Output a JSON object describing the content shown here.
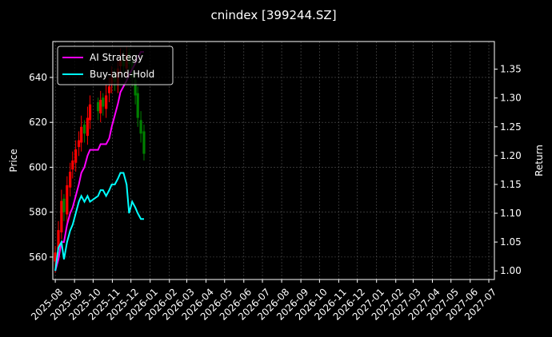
{
  "chart_data": {
    "type": "candlestick",
    "title": "cnindex [399244.SZ]",
    "ylabel": "Price",
    "y2label": "Return",
    "x": [
      "2025-08-01",
      "2025-08-06",
      "2025-08-11",
      "2025-08-15",
      "2025-08-20",
      "2025-08-25",
      "2025-08-29",
      "2025-09-03",
      "2025-09-08",
      "2025-09-12",
      "2025-09-17",
      "2025-09-22",
      "2025-09-26",
      "2025-10-09",
      "2025-10-13",
      "2025-10-17",
      "2025-10-22",
      "2025-10-27",
      "2025-10-31",
      "2025-11-05",
      "2025-11-10",
      "2025-11-14",
      "2025-11-19",
      "2025-11-24",
      "2025-11-28",
      "2025-12-03",
      "2025-12-08",
      "2025-12-12",
      "2025-12-17",
      "2025-12-22"
    ],
    "open": [
      558,
      563,
      571,
      586,
      579,
      591,
      599,
      602,
      609,
      611,
      619,
      614,
      621,
      629,
      624,
      631,
      626,
      633,
      637,
      641,
      637,
      645,
      649,
      644,
      651,
      647,
      639,
      633,
      621,
      616
    ],
    "high": [
      565,
      576,
      590,
      588,
      596,
      602,
      607,
      612,
      616,
      623,
      621,
      627,
      632,
      631,
      634,
      633,
      637,
      640,
      645,
      644,
      648,
      653,
      652,
      654,
      653,
      649,
      642,
      636,
      625,
      619
    ],
    "low": [
      553,
      560,
      568,
      576,
      575,
      587,
      595,
      598,
      605,
      607,
      611,
      610,
      617,
      621,
      620,
      623,
      622,
      629,
      633,
      634,
      633,
      641,
      642,
      640,
      643,
      636,
      628,
      618,
      611,
      603
    ],
    "close": [
      562,
      572,
      585,
      580,
      592,
      598,
      603,
      608,
      612,
      618,
      615,
      622,
      628,
      625,
      630,
      627,
      632,
      636,
      640,
      638,
      644,
      648,
      645,
      650,
      646,
      640,
      632,
      622,
      615,
      606
    ],
    "up_color": "#ff0000",
    "down_color": "#008000",
    "series": [
      {
        "name": "AI Strategy",
        "color": "#ff00ff",
        "axis": "y2",
        "values": [
          1.0,
          1.02,
          1.05,
          1.05,
          1.08,
          1.1,
          1.11,
          1.13,
          1.15,
          1.17,
          1.18,
          1.2,
          1.21,
          1.21,
          1.22,
          1.22,
          1.22,
          1.23,
          1.25,
          1.27,
          1.29,
          1.31,
          1.32,
          1.33,
          1.34,
          1.35,
          1.36,
          1.37,
          1.38,
          1.38
        ]
      },
      {
        "name": "Buy-and-Hold",
        "color": "#00ffff",
        "axis": "y2",
        "values": [
          1.0,
          1.04,
          1.05,
          1.02,
          1.05,
          1.07,
          1.08,
          1.1,
          1.12,
          1.13,
          1.12,
          1.13,
          1.12,
          1.13,
          1.14,
          1.14,
          1.13,
          1.14,
          1.15,
          1.15,
          1.16,
          1.17,
          1.17,
          1.15,
          1.1,
          1.12,
          1.11,
          1.1,
          1.09,
          1.09
        ]
      }
    ],
    "xlim": [
      "2025-07-28",
      "2027-07-10"
    ],
    "xticks": [
      {
        "value": "2025-08-01",
        "label": "2025-08"
      },
      {
        "value": "2025-09-01",
        "label": "2025-09"
      },
      {
        "value": "2025-10-01",
        "label": "2025-10"
      },
      {
        "value": "2025-11-01",
        "label": "2025-11"
      },
      {
        "value": "2025-12-01",
        "label": "2025-12"
      },
      {
        "value": "2026-01-01",
        "label": "2026-01"
      },
      {
        "value": "2026-02-01",
        "label": "2026-02"
      },
      {
        "value": "2026-03-01",
        "label": "2026-03"
      },
      {
        "value": "2026-04-01",
        "label": "2026-04"
      },
      {
        "value": "2026-05-01",
        "label": "2026-05"
      },
      {
        "value": "2026-06-01",
        "label": "2026-06"
      },
      {
        "value": "2026-07-01",
        "label": "2026-07"
      },
      {
        "value": "2026-08-01",
        "label": "2026-08"
      },
      {
        "value": "2026-09-01",
        "label": "2026-09"
      },
      {
        "value": "2026-10-01",
        "label": "2026-10"
      },
      {
        "value": "2026-11-01",
        "label": "2026-11"
      },
      {
        "value": "2026-12-01",
        "label": "2026-12"
      },
      {
        "value": "2027-01-01",
        "label": "2027-01"
      },
      {
        "value": "2027-02-01",
        "label": "2027-02"
      },
      {
        "value": "2027-03-01",
        "label": "2027-03"
      },
      {
        "value": "2027-04-01",
        "label": "2027-04"
      },
      {
        "value": "2027-05-01",
        "label": "2027-05"
      },
      {
        "value": "2027-06-01",
        "label": "2027-06"
      },
      {
        "value": "2027-07-01",
        "label": "2027-07"
      }
    ],
    "ylim": [
      550,
      656
    ],
    "yticks": [
      560,
      580,
      600,
      620,
      640
    ],
    "y2lim": [
      0.985,
      1.398
    ],
    "y2ticks": [
      {
        "value": 1,
        "label": "1.00"
      },
      1.05,
      {
        "value": 1.1,
        "label": "1.10"
      },
      1.15,
      {
        "value": 1.2,
        "label": "1.20"
      },
      1.25,
      {
        "value": 1.3,
        "label": "1.30"
      },
      1.35
    ],
    "grid": true,
    "legend": "upper left"
  }
}
